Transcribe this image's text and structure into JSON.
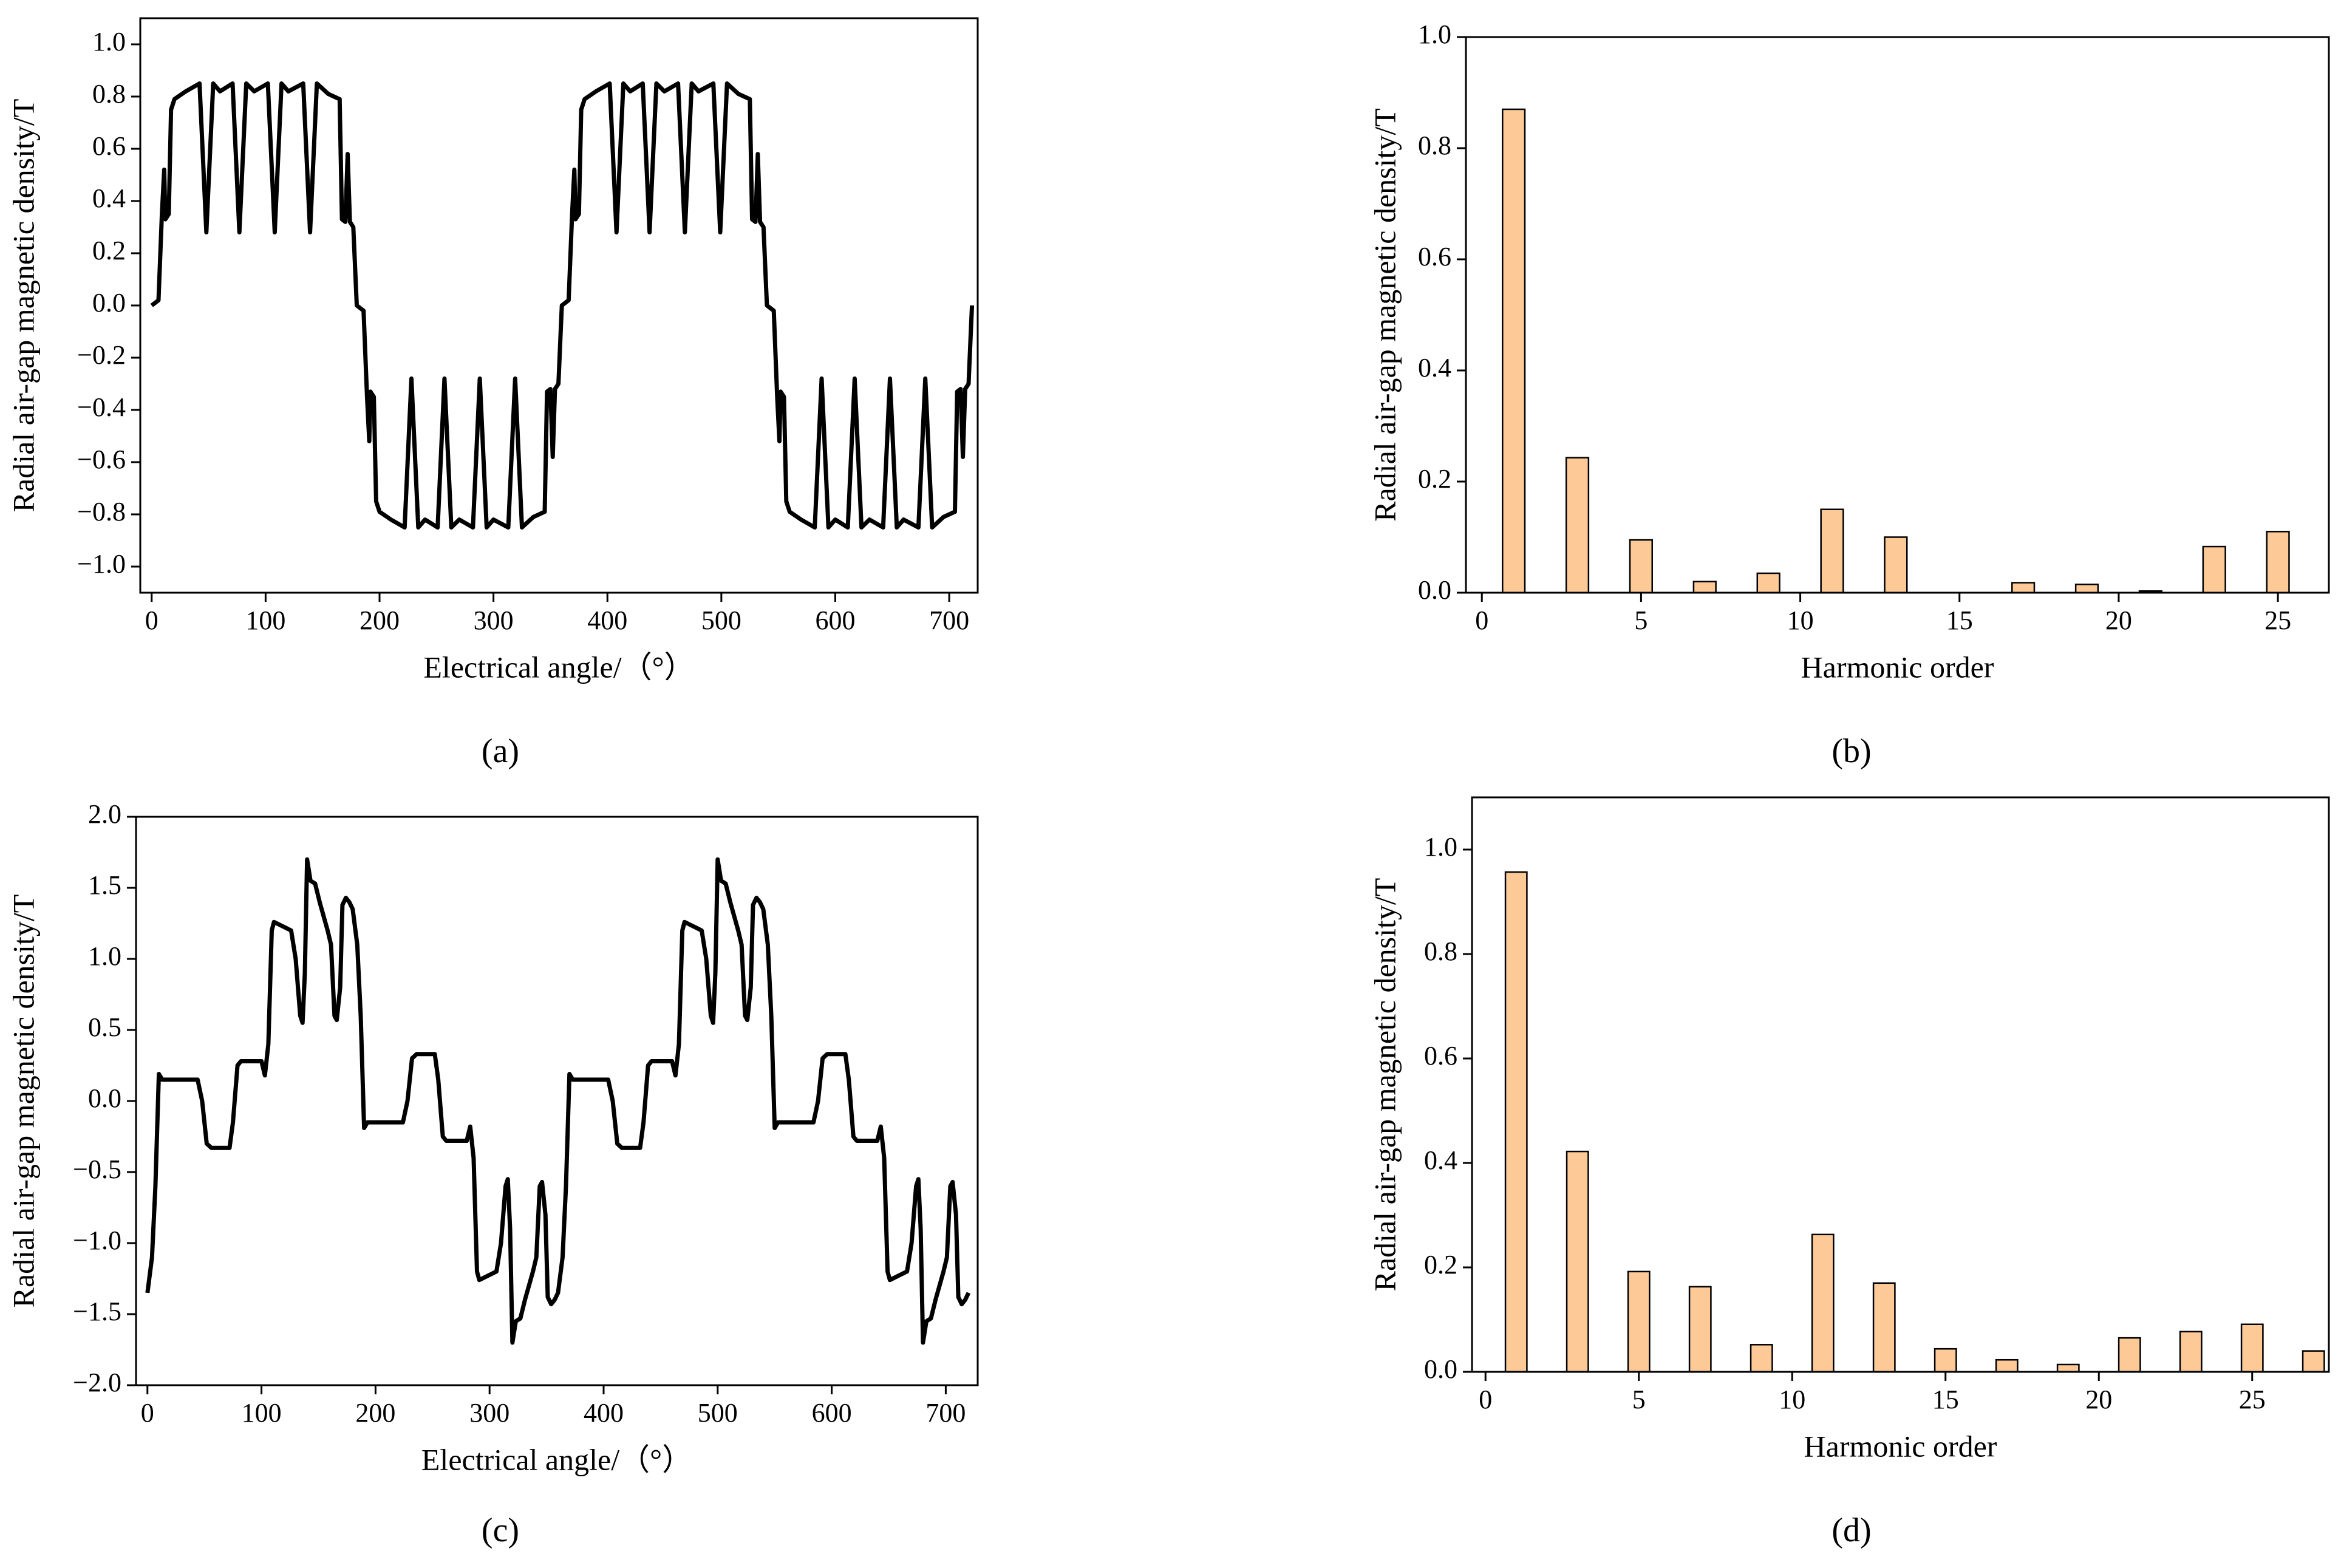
{
  "chart_data": [
    {
      "type": "line",
      "panel_label": "(a)",
      "x_label": "Electrical angle/（°）",
      "y_label": "Radial air-gap magnetic density/T",
      "color": "#000000",
      "xlim": [
        -10,
        725
      ],
      "ylim": [
        -1.1,
        1.1
      ],
      "xticks": [
        0,
        100,
        200,
        300,
        400,
        500,
        600,
        700
      ],
      "yticks": [
        {
          "value": -1.0,
          "label": "−1.0"
        },
        {
          "value": -0.8,
          "label": "−0.8"
        },
        {
          "value": -0.6,
          "label": "−0.6"
        },
        {
          "value": -0.4,
          "label": "−0.4"
        },
        {
          "value": -0.2,
          "label": "−0.2"
        },
        {
          "value": 0,
          "label": "0.0"
        },
        0.2,
        0.4,
        0.6,
        0.8,
        {
          "value": 1.0,
          "label": "1.0"
        }
      ],
      "x": [
        0,
        6,
        9,
        11,
        12,
        15,
        17,
        20,
        30,
        42,
        48,
        54,
        60,
        71,
        77,
        83,
        90,
        102,
        108,
        114,
        120,
        133,
        139,
        145,
        155,
        165,
        167,
        170,
        172,
        174,
        177,
        179,
        180,
        186,
        189,
        191,
        192,
        195,
        197,
        200,
        210,
        222,
        228,
        234,
        240,
        251,
        257,
        263,
        270,
        282,
        288,
        294,
        300,
        313,
        319,
        325,
        335,
        345,
        347,
        350,
        352,
        354,
        357,
        359,
        360,
        366,
        369,
        371,
        372,
        375,
        377,
        380,
        390,
        402,
        408,
        414,
        420,
        431,
        437,
        443,
        450,
        462,
        468,
        474,
        480,
        493,
        499,
        505,
        515,
        525,
        527,
        530,
        532,
        534,
        537,
        539,
        540,
        546,
        549,
        551,
        552,
        555,
        557,
        560,
        570,
        582,
        588,
        594,
        600,
        611,
        617,
        623,
        630,
        642,
        648,
        654,
        660,
        673,
        679,
        685,
        695,
        705,
        707,
        710,
        712,
        714,
        717,
        719,
        720
      ],
      "values": [
        0,
        0.02,
        0.35,
        0.52,
        0.33,
        0.35,
        0.75,
        0.79,
        0.82,
        0.85,
        0.28,
        0.85,
        0.82,
        0.85,
        0.28,
        0.85,
        0.82,
        0.85,
        0.28,
        0.85,
        0.82,
        0.85,
        0.28,
        0.85,
        0.81,
        0.79,
        0.33,
        0.32,
        0.58,
        0.32,
        0.3,
        0.1,
        0,
        -0.02,
        -0.35,
        -0.52,
        -0.33,
        -0.35,
        -0.75,
        -0.79,
        -0.82,
        -0.85,
        -0.28,
        -0.85,
        -0.82,
        -0.85,
        -0.28,
        -0.85,
        -0.82,
        -0.85,
        -0.28,
        -0.85,
        -0.82,
        -0.85,
        -0.28,
        -0.85,
        -0.81,
        -0.79,
        -0.33,
        -0.32,
        -0.58,
        -0.32,
        -0.3,
        -0.1,
        0,
        0.02,
        0.35,
        0.52,
        0.33,
        0.35,
        0.75,
        0.79,
        0.82,
        0.85,
        0.28,
        0.85,
        0.82,
        0.85,
        0.28,
        0.85,
        0.82,
        0.85,
        0.28,
        0.85,
        0.82,
        0.85,
        0.28,
        0.85,
        0.81,
        0.79,
        0.33,
        0.32,
        0.58,
        0.32,
        0.3,
        0.1,
        0,
        -0.02,
        -0.35,
        -0.52,
        -0.33,
        -0.35,
        -0.75,
        -0.79,
        -0.82,
        -0.85,
        -0.28,
        -0.85,
        -0.82,
        -0.85,
        -0.28,
        -0.85,
        -0.82,
        -0.85,
        -0.28,
        -0.85,
        -0.82,
        -0.85,
        -0.28,
        -0.85,
        -0.81,
        -0.79,
        -0.33,
        -0.32,
        -0.58,
        -0.32,
        -0.3,
        -0.1,
        0
      ]
    },
    {
      "type": "bar",
      "panel_label": "(b)",
      "x_label": "Harmonic order",
      "y_label": "Radial air-gap magnetic density/T",
      "color": "#fdca97",
      "xlim": [
        -0.5,
        26.6
      ],
      "ylim": [
        0,
        1
      ],
      "xticks": [
        0,
        5,
        10,
        15,
        20,
        25
      ],
      "yticks": [
        {
          "value": 0,
          "label": "0.0"
        },
        0.2,
        0.4,
        0.6,
        0.8,
        {
          "value": 1.0,
          "label": "1.0"
        }
      ],
      "x": [
        1,
        3,
        5,
        7,
        9,
        11,
        13,
        15,
        17,
        19,
        21,
        23,
        25
      ],
      "values": [
        0.87,
        0.243,
        0.095,
        0.02,
        0.035,
        0.15,
        0.1,
        0,
        0.018,
        0.015,
        0.003,
        0.083,
        0.11
      ]
    },
    {
      "type": "line",
      "panel_label": "(c)",
      "x_label": "Electrical angle/（°）",
      "y_label": "Radial air-gap magnetic density/T",
      "color": "#000000",
      "xlim": [
        -10,
        728
      ],
      "ylim": [
        -2,
        2
      ],
      "xticks": [
        0,
        100,
        200,
        300,
        400,
        500,
        600,
        700
      ],
      "yticks": [
        {
          "value": -2.0,
          "label": "−2.0"
        },
        {
          "value": -1.5,
          "label": "−1.5"
        },
        {
          "value": -1.0,
          "label": "−1.0"
        },
        {
          "value": -0.5,
          "label": "−0.5"
        },
        {
          "value": 0,
          "label": "0.0"
        },
        0.5,
        {
          "value": 1.0,
          "label": "1.0"
        },
        1.5,
        {
          "value": 2.0,
          "label": "2.0"
        }
      ],
      "x": [
        0,
        4,
        7,
        10,
        13,
        20,
        44,
        48,
        52,
        56,
        72,
        75,
        79,
        82,
        100,
        103,
        106,
        109,
        111,
        126,
        130,
        134,
        136,
        138,
        140,
        143,
        147,
        151,
        158,
        161,
        164,
        166,
        169,
        171,
        174,
        177,
        180,
        184,
        187,
        190,
        193,
        200,
        224,
        228,
        232,
        236,
        252,
        255,
        259,
        262,
        280,
        283,
        286,
        289,
        291,
        306,
        310,
        314,
        316,
        318,
        320,
        323,
        327,
        331,
        338,
        341,
        344,
        346,
        349,
        351,
        354,
        357,
        360,
        364,
        367,
        370,
        373,
        380,
        404,
        408,
        412,
        416,
        432,
        435,
        439,
        442,
        460,
        463,
        466,
        469,
        471,
        486,
        490,
        494,
        496,
        498,
        500,
        503,
        507,
        511,
        518,
        521,
        524,
        526,
        529,
        531,
        534,
        537,
        540,
        544,
        547,
        550,
        553,
        560,
        584,
        588,
        592,
        596,
        612,
        615,
        619,
        622,
        640,
        643,
        646,
        649,
        651,
        666,
        670,
        674,
        676,
        678,
        680,
        683,
        687,
        691,
        698,
        701,
        704,
        706,
        709,
        711,
        714,
        717,
        720
      ],
      "values": [
        -1.35,
        -1.1,
        -0.6,
        0.19,
        0.15,
        0.15,
        0.15,
        0,
        -0.3,
        -0.33,
        -0.33,
        -0.15,
        0.25,
        0.28,
        0.28,
        0.18,
        0.4,
        1.2,
        1.26,
        1.2,
        1,
        0.6,
        0.55,
        0.9,
        1.7,
        1.55,
        1.53,
        1.4,
        1.2,
        1.1,
        0.6,
        0.57,
        0.8,
        1.38,
        1.43,
        1.4,
        1.35,
        1.1,
        0.6,
        -0.19,
        -0.15,
        -0.15,
        -0.15,
        0,
        0.3,
        0.33,
        0.33,
        0.15,
        -0.25,
        -0.28,
        -0.28,
        -0.18,
        -0.4,
        -1.2,
        -1.26,
        -1.2,
        -1,
        -0.6,
        -0.55,
        -0.9,
        -1.7,
        -1.55,
        -1.53,
        -1.4,
        -1.2,
        -1.1,
        -0.6,
        -0.57,
        -0.8,
        -1.38,
        -1.43,
        -1.4,
        -1.35,
        -1.1,
        -0.6,
        0.19,
        0.15,
        0.15,
        0.15,
        0,
        -0.3,
        -0.33,
        -0.33,
        -0.15,
        0.25,
        0.28,
        0.28,
        0.18,
        0.4,
        1.2,
        1.26,
        1.2,
        1,
        0.6,
        0.55,
        0.9,
        1.7,
        1.55,
        1.53,
        1.4,
        1.2,
        1.1,
        0.6,
        0.57,
        0.8,
        1.38,
        1.43,
        1.4,
        1.35,
        1.1,
        0.6,
        -0.19,
        -0.15,
        -0.15,
        -0.15,
        0,
        0.3,
        0.33,
        0.33,
        0.15,
        -0.25,
        -0.28,
        -0.28,
        -0.18,
        -0.4,
        -1.2,
        -1.26,
        -1.2,
        -1,
        -0.6,
        -0.55,
        -0.9,
        -1.7,
        -1.55,
        -1.53,
        -1.4,
        -1.2,
        -1.1,
        -0.6,
        -0.57,
        -0.8,
        -1.38,
        -1.43,
        -1.4,
        -1.35
      ]
    },
    {
      "type": "bar",
      "panel_label": "(d)",
      "x_label": "Harmonic order",
      "y_label": "Radial air-gap magnetic density/T",
      "color": "#fdca97",
      "xlim": [
        -0.44,
        27.5
      ],
      "ylim": [
        0,
        1.1
      ],
      "xticks": [
        0,
        5,
        10,
        15,
        20,
        25
      ],
      "yticks": [
        {
          "value": 0,
          "label": "0.0"
        },
        0.2,
        0.4,
        0.6,
        0.8,
        {
          "value": 1.0,
          "label": "1.0"
        }
      ],
      "x": [
        1,
        3,
        5,
        7,
        9,
        11,
        13,
        15,
        17,
        19,
        21,
        23,
        25,
        27
      ],
      "values": [
        0.957,
        0.422,
        0.192,
        0.163,
        0.052,
        0.263,
        0.17,
        0.044,
        0.023,
        0.014,
        0.065,
        0.077,
        0.091,
        0.04
      ]
    }
  ]
}
